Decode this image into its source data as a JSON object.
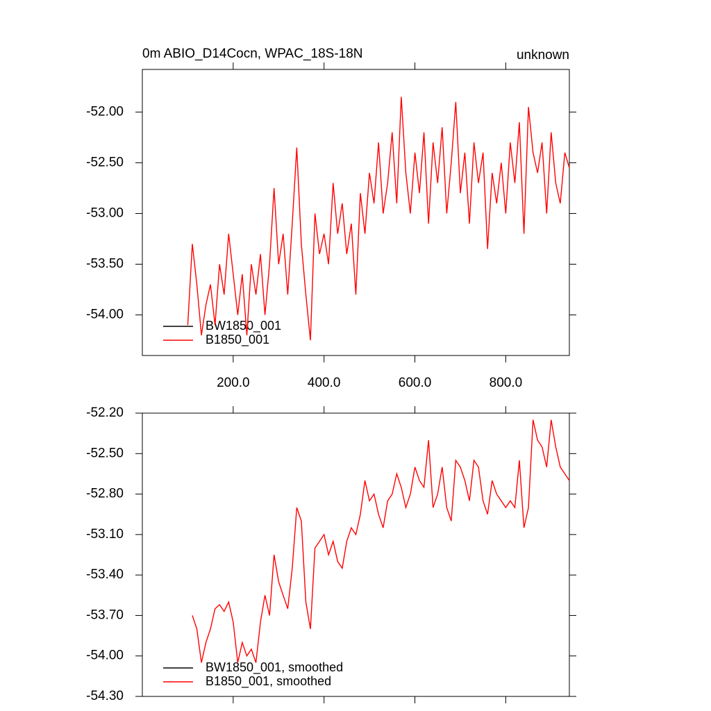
{
  "chart_data": [
    {
      "type": "line",
      "title": "0m ABIO_D14Cocn, WPAC_18S-18N",
      "right_title": "unknown",
      "x": [
        100,
        110,
        120,
        130,
        140,
        150,
        160,
        170,
        180,
        190,
        200,
        210,
        220,
        230,
        240,
        250,
        260,
        270,
        280,
        290,
        300,
        310,
        320,
        330,
        340,
        350,
        360,
        370,
        380,
        390,
        400,
        410,
        420,
        430,
        440,
        450,
        460,
        470,
        480,
        490,
        500,
        510,
        520,
        530,
        540,
        550,
        560,
        570,
        580,
        590,
        600,
        610,
        620,
        630,
        640,
        650,
        660,
        670,
        680,
        690,
        700,
        710,
        720,
        730,
        740,
        750,
        760,
        770,
        780,
        790,
        800,
        810,
        820,
        830,
        840,
        850,
        860,
        870,
        880,
        890,
        900,
        910,
        920,
        930,
        940
      ],
      "series": [
        {
          "name": "BW1850_001",
          "color": "#000000",
          "values": [
            null,
            null,
            null,
            null,
            null,
            null,
            null,
            null,
            null,
            null,
            null,
            null,
            null,
            null,
            null,
            null,
            null,
            null,
            null,
            null,
            null,
            null,
            null,
            null,
            null,
            null,
            null,
            null,
            null,
            null,
            null,
            null,
            null,
            null,
            null,
            null,
            null,
            null,
            null,
            null,
            null,
            null,
            null,
            null,
            null,
            null,
            null,
            null,
            null,
            null,
            null,
            null,
            null,
            null,
            null,
            null,
            null,
            null,
            null,
            null,
            null,
            null,
            null,
            null,
            null,
            null,
            null,
            null,
            null,
            null,
            null,
            null,
            null,
            null,
            null,
            null,
            null,
            null,
            null,
            null,
            null,
            null,
            null,
            null,
            null
          ]
        },
        {
          "name": "B1850_001",
          "color": "#ff0000",
          "values": [
            -54.1,
            -53.3,
            -53.7,
            -54.2,
            -53.9,
            -53.7,
            -54.1,
            -53.5,
            -53.8,
            -53.2,
            -53.6,
            -54.0,
            -53.6,
            -54.2,
            -53.5,
            -53.8,
            -53.4,
            -54.0,
            -53.5,
            -52.75,
            -53.5,
            -53.2,
            -53.8,
            -53.1,
            -52.35,
            -53.3,
            -53.8,
            -54.25,
            -53.0,
            -53.4,
            -53.2,
            -53.5,
            -52.7,
            -53.2,
            -52.9,
            -53.4,
            -53.1,
            -53.8,
            -52.8,
            -53.2,
            -52.6,
            -52.9,
            -52.3,
            -53.0,
            -52.7,
            -52.2,
            -52.9,
            -51.85,
            -52.6,
            -53.0,
            -52.4,
            -52.8,
            -52.2,
            -53.1,
            -52.3,
            -52.7,
            -52.15,
            -53.0,
            -52.5,
            -51.9,
            -52.8,
            -52.4,
            -53.1,
            -52.3,
            -52.7,
            -52.4,
            -53.35,
            -52.6,
            -52.9,
            -52.5,
            -53.0,
            -52.3,
            -52.7,
            -52.1,
            -53.2,
            -51.95,
            -52.4,
            -52.6,
            -52.3,
            -53.0,
            -52.2,
            -52.7,
            -52.9,
            -52.4,
            -52.55
          ]
        }
      ],
      "xlim": [
        0,
        940
      ],
      "ylim": [
        -54.4,
        -51.58
      ],
      "xticks": [
        {
          "value": 200,
          "label": "200.0"
        },
        {
          "value": 400,
          "label": "400.0"
        },
        {
          "value": 600,
          "label": "600.0"
        },
        {
          "value": 800,
          "label": "800.0"
        }
      ],
      "yticks": [
        {
          "value": -52,
          "label": "-52.00"
        },
        {
          "value": -52.5,
          "label": "-52.50"
        },
        {
          "value": -53,
          "label": "-53.00"
        },
        {
          "value": -53.5,
          "label": "-53.50"
        },
        {
          "value": -54,
          "label": "-54.00"
        }
      ]
    },
    {
      "type": "line",
      "x": [
        110,
        120,
        130,
        140,
        150,
        160,
        170,
        180,
        190,
        200,
        210,
        220,
        230,
        240,
        250,
        260,
        270,
        280,
        290,
        300,
        310,
        320,
        330,
        340,
        350,
        360,
        370,
        380,
        390,
        400,
        410,
        420,
        430,
        440,
        450,
        460,
        470,
        480,
        490,
        500,
        510,
        520,
        530,
        540,
        550,
        560,
        570,
        580,
        590,
        600,
        610,
        620,
        630,
        640,
        650,
        660,
        670,
        680,
        690,
        700,
        710,
        720,
        730,
        740,
        750,
        760,
        770,
        780,
        790,
        800,
        810,
        820,
        830,
        840,
        850,
        860,
        870,
        880,
        890,
        900,
        910,
        920,
        930,
        940
      ],
      "series": [
        {
          "name": "BW1850_001, smoothed",
          "color": "#000000",
          "values": [
            null,
            null,
            null,
            null,
            null,
            null,
            null,
            null,
            null,
            null,
            null,
            null,
            null,
            null,
            null,
            null,
            null,
            null,
            null,
            null,
            null,
            null,
            null,
            null,
            null,
            null,
            null,
            null,
            null,
            null,
            null,
            null,
            null,
            null,
            null,
            null,
            null,
            null,
            null,
            null,
            null,
            null,
            null,
            null,
            null,
            null,
            null,
            null,
            null,
            null,
            null,
            null,
            null,
            null,
            null,
            null,
            null,
            null,
            null,
            null,
            null,
            null,
            null,
            null,
            null,
            null,
            null,
            null,
            null,
            null,
            null,
            null,
            null,
            null,
            null,
            null,
            null,
            null,
            null,
            null,
            null,
            null,
            null,
            null
          ]
        },
        {
          "name": "B1850_001, smoothed",
          "color": "#ff0000",
          "values": [
            -53.7,
            -53.8,
            -54.05,
            -53.9,
            -53.8,
            -53.65,
            -53.62,
            -53.67,
            -53.6,
            -53.75,
            -54.05,
            -53.9,
            -54.0,
            -53.95,
            -54.05,
            -53.75,
            -53.55,
            -53.7,
            -53.25,
            -53.45,
            -53.55,
            -53.65,
            -53.35,
            -52.9,
            -53.0,
            -53.6,
            -53.8,
            -53.2,
            -53.15,
            -53.1,
            -53.25,
            -53.15,
            -53.3,
            -53.35,
            -53.15,
            -53.05,
            -53.1,
            -52.95,
            -52.7,
            -52.85,
            -52.8,
            -52.95,
            -53.05,
            -52.85,
            -52.8,
            -52.65,
            -52.75,
            -52.9,
            -52.8,
            -52.6,
            -52.7,
            -52.75,
            -52.4,
            -52.9,
            -52.8,
            -52.6,
            -52.9,
            -53.0,
            -52.55,
            -52.6,
            -52.7,
            -52.85,
            -52.55,
            -52.6,
            -52.85,
            -52.95,
            -52.7,
            -52.8,
            -52.85,
            -52.9,
            -52.85,
            -52.9,
            -52.55,
            -53.05,
            -52.9,
            -52.25,
            -52.4,
            -52.45,
            -52.6,
            -52.25,
            -52.45,
            -52.6,
            -52.65,
            -52.7
          ]
        }
      ],
      "xlim": [
        0,
        940
      ],
      "ylim": [
        -54.3,
        -52.2
      ],
      "xticks": [
        200,
        400,
        600,
        800
      ],
      "yticks": [
        {
          "value": -52.2,
          "label": "-52.20"
        },
        {
          "value": -52.5,
          "label": "-52.50"
        },
        {
          "value": -52.8,
          "label": "-52.80"
        },
        {
          "value": -53.1,
          "label": "-53.10"
        },
        {
          "value": -53.4,
          "label": "-53.40"
        },
        {
          "value": -53.7,
          "label": "-53.70"
        },
        {
          "value": -54,
          "label": "-54.00"
        },
        {
          "value": -54.3,
          "label": "-54.30"
        }
      ]
    }
  ]
}
